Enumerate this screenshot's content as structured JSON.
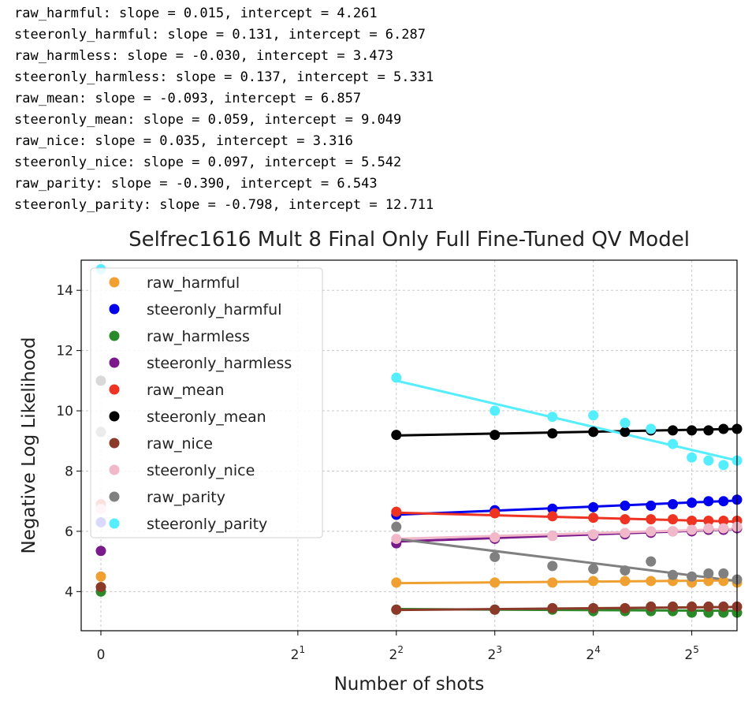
{
  "console_lines": [
    "raw_harmful: slope = 0.015, intercept = 4.261",
    "steeronly_harmful: slope = 0.131, intercept = 6.287",
    "raw_harmless: slope = -0.030, intercept = 3.473",
    "steeronly_harmless: slope = 0.137, intercept = 5.331",
    "raw_mean: slope = -0.093, intercept = 6.857",
    "steeronly_mean: slope = 0.059, intercept = 9.049",
    "raw_nice: slope = 0.035, intercept = 3.316",
    "steeronly_nice: slope = 0.097, intercept = 5.542",
    "raw_parity: slope = -0.390, intercept = 6.543",
    "steeronly_parity: slope = -0.798, intercept = 12.711"
  ],
  "chart_data": {
    "type": "scatter",
    "title": "Selfrec1616 Mult 8 Final Only Full Fine-Tuned QV Model",
    "xlabel": "Number of shots",
    "ylabel": "Negative Log Likelihood",
    "x_scale": "symlog base 2",
    "xlim": [
      -0.2,
      44
    ],
    "ylim": [
      2.7,
      15.0
    ],
    "x_ticks": [
      {
        "value": 0,
        "label": "0"
      },
      {
        "value": 2,
        "base": "2",
        "exp": "1"
      },
      {
        "value": 4,
        "base": "2",
        "exp": "2"
      },
      {
        "value": 8,
        "base": "2",
        "exp": "3"
      },
      {
        "value": 16,
        "base": "2",
        "exp": "4"
      },
      {
        "value": 32,
        "base": "2",
        "exp": "5"
      }
    ],
    "y_ticks": [
      4,
      6,
      8,
      10,
      12,
      14
    ],
    "grid": true,
    "legend_position": "upper-left",
    "x": [
      0,
      4,
      8,
      12,
      16,
      20,
      24,
      28,
      32,
      36,
      40,
      44
    ],
    "series": [
      {
        "name": "raw_harmful",
        "color": "#f0a030",
        "values": [
          4.5,
          4.3,
          4.3,
          4.3,
          4.35,
          4.35,
          4.35,
          4.35,
          4.3,
          4.35,
          4.35,
          4.3
        ],
        "fit_x": [
          4,
          44
        ],
        "fit_y": [
          4.28,
          4.37
        ]
      },
      {
        "name": "steeronly_harmful",
        "color": "#0000ee",
        "values": [
          6.3,
          6.55,
          6.7,
          6.75,
          6.8,
          6.85,
          6.85,
          6.9,
          6.95,
          7.0,
          7.0,
          7.05
        ],
        "fit_x": [
          4,
          44
        ],
        "fit_y": [
          6.55,
          7.02
        ]
      },
      {
        "name": "raw_harmless",
        "color": "#2a8a2a",
        "values": [
          4.0,
          3.4,
          3.4,
          3.4,
          3.35,
          3.35,
          3.35,
          3.35,
          3.3,
          3.3,
          3.3,
          3.3
        ],
        "fit_x": [
          4,
          44
        ],
        "fit_y": [
          3.42,
          3.36
        ]
      },
      {
        "name": "steeronly_harmless",
        "color": "#7a1a8a",
        "values": [
          5.35,
          5.6,
          5.75,
          5.85,
          5.85,
          5.9,
          5.95,
          6.0,
          6.0,
          6.05,
          6.05,
          6.1
        ],
        "fit_x": [
          4,
          44
        ],
        "fit_y": [
          5.66,
          6.07
        ]
      },
      {
        "name": "raw_mean",
        "color": "#ee3322",
        "values": [
          6.9,
          6.65,
          6.6,
          6.5,
          6.45,
          6.4,
          6.4,
          6.4,
          6.35,
          6.35,
          6.35,
          6.35
        ],
        "fit_x": [
          4,
          44
        ],
        "fit_y": [
          6.62,
          6.32
        ]
      },
      {
        "name": "steeronly_mean",
        "color": "#000000",
        "values": [
          11.0,
          9.2,
          9.2,
          9.25,
          9.3,
          9.3,
          9.35,
          9.35,
          9.35,
          9.35,
          9.4,
          9.4
        ],
        "fit_x": [
          4,
          44
        ],
        "fit_y": [
          9.18,
          9.4
        ]
      },
      {
        "name": "raw_nice",
        "color": "#8b3a2a",
        "values": [
          4.15,
          3.4,
          3.4,
          3.45,
          3.45,
          3.45,
          3.5,
          3.5,
          3.5,
          3.5,
          3.5,
          3.5
        ],
        "fit_x": [
          4,
          44
        ],
        "fit_y": [
          3.39,
          3.49
        ]
      },
      {
        "name": "steeronly_nice",
        "color": "#f0b8c8",
        "values": [
          6.75,
          5.75,
          5.8,
          5.85,
          5.9,
          5.95,
          6.0,
          6.0,
          6.05,
          6.1,
          6.1,
          6.15
        ],
        "fit_x": [
          4,
          44
        ],
        "fit_y": [
          5.75,
          6.08
        ]
      },
      {
        "name": "raw_parity",
        "color": "#808080",
        "values": [
          9.3,
          6.15,
          5.15,
          4.85,
          4.75,
          4.7,
          5.0,
          4.55,
          4.5,
          4.6,
          4.6,
          4.4
        ],
        "fit_x": [
          4,
          44
        ],
        "fit_y": [
          5.75,
          4.35
        ]
      },
      {
        "name": "steeronly_parity",
        "color": "#55eeff",
        "values": [
          14.7,
          11.1,
          10.0,
          9.8,
          9.85,
          9.6,
          9.4,
          8.9,
          8.45,
          8.35,
          8.2,
          8.35
        ],
        "fit_x": [
          4,
          44
        ],
        "fit_y": [
          11.0,
          8.35
        ]
      }
    ]
  }
}
